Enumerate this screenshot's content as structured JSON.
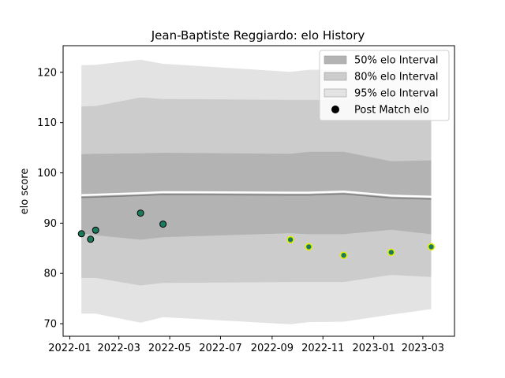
{
  "chart_data": {
    "type": "line",
    "title": "Jean-Baptiste Reggiardo: elo History",
    "xlabel": "",
    "ylabel": "elo score",
    "xlim": [
      "2021-12-24",
      "2023-04-08"
    ],
    "ylim": [
      67.5,
      125.3
    ],
    "x_ticks": [
      "2022-01",
      "2022-03",
      "2022-05",
      "2022-07",
      "2022-09",
      "2022-11",
      "2023-01",
      "2023-03"
    ],
    "y_ticks": [
      70,
      80,
      90,
      100,
      110,
      120
    ],
    "grid": false,
    "legend_position": "top-right",
    "dates": [
      "2022-01-15",
      "2022-02-01",
      "2022-03-27",
      "2022-04-23",
      "2022-09-23",
      "2022-10-15",
      "2022-11-26",
      "2023-01-22",
      "2023-03-11"
    ],
    "series": [
      {
        "name": "50% elo Interval",
        "color": "#b3b3b3",
        "lower": [
          88.0,
          87.6,
          86.7,
          87.2,
          88.0,
          87.8,
          87.8,
          88.7,
          87.8
        ],
        "upper": [
          103.7,
          103.8,
          103.9,
          104.0,
          103.8,
          104.2,
          104.2,
          102.3,
          102.5
        ]
      },
      {
        "name": "80% elo Interval",
        "color": "#cccccc",
        "lower": [
          79.1,
          79.1,
          77.6,
          78.1,
          78.3,
          78.3,
          78.3,
          79.7,
          79.3
        ],
        "upper": [
          113.2,
          113.3,
          115.0,
          114.7,
          114.5,
          114.5,
          114.5,
          114.5,
          114.5
        ]
      },
      {
        "name": "95% elo Interval",
        "color": "#e3e3e3",
        "lower": [
          72.0,
          72.0,
          70.2,
          71.3,
          69.9,
          70.3,
          70.4,
          71.8,
          72.9
        ],
        "upper": [
          121.4,
          121.5,
          122.5,
          121.7,
          120.1,
          120.5,
          120.5,
          120.5,
          120.5
        ]
      },
      {
        "name": "Post Match elo",
        "type": "scatter",
        "color": "#1a7a5e",
        "points": [
          {
            "x": "2022-01-15",
            "y": 87.9
          },
          {
            "x": "2022-01-26",
            "y": 86.8
          },
          {
            "x": "2022-02-01",
            "y": 88.6
          },
          {
            "x": "2022-03-27",
            "y": 92.0
          },
          {
            "x": "2022-04-23",
            "y": 89.8
          },
          {
            "x": "2022-09-23",
            "y": 86.7
          },
          {
            "x": "2022-10-15",
            "y": 85.3
          },
          {
            "x": "2022-11-26",
            "y": 83.6
          },
          {
            "x": "2023-01-22",
            "y": 84.2
          },
          {
            "x": "2023-03-11",
            "y": 85.3
          }
        ]
      },
      {
        "type": "line",
        "color": "#808080",
        "values": [
          95.1,
          95.2,
          95.5,
          95.7,
          95.6,
          95.6,
          95.8,
          95.0,
          94.8
        ]
      }
    ]
  }
}
